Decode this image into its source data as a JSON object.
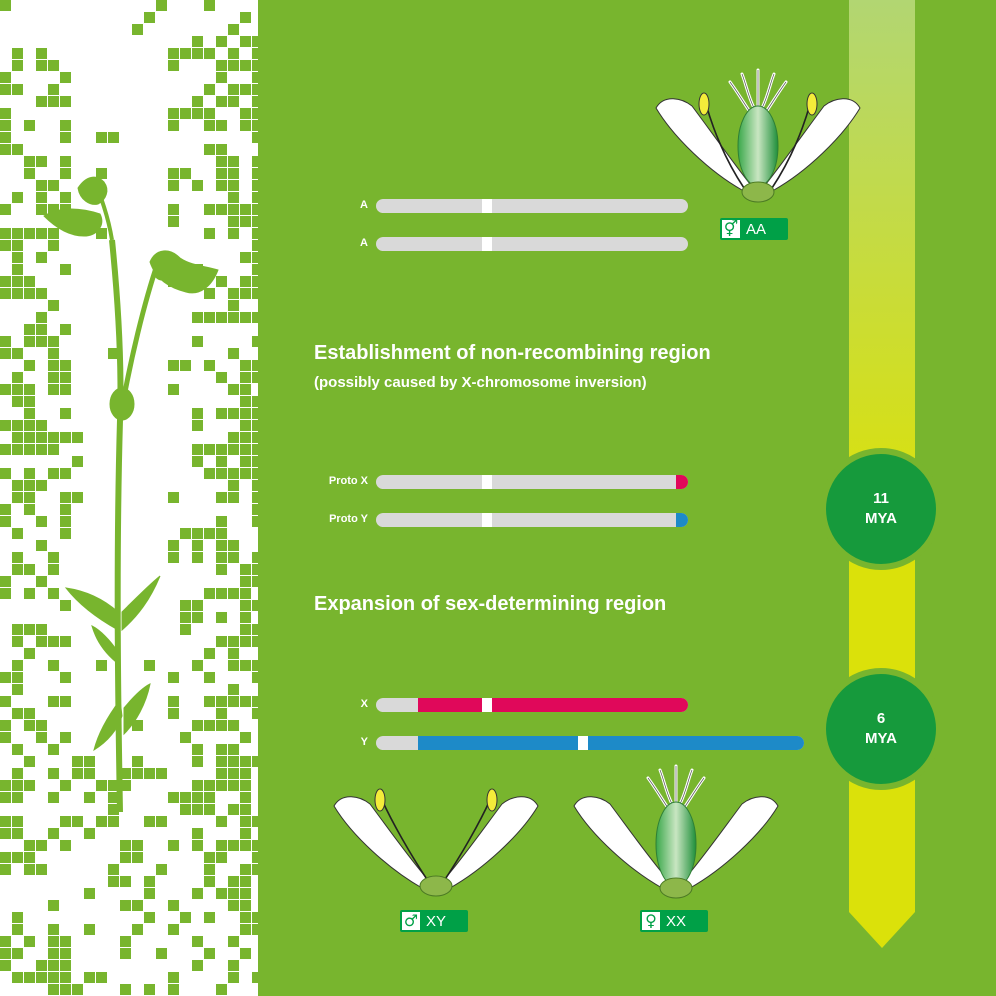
{
  "colors": {
    "panel_green": "#78b52e",
    "badge_green": "#00a047",
    "circle_green": "#169a3c",
    "x_region": "#e0085a",
    "y_region": "#1d8ac8",
    "chromosome_grey": "#d9d9d9",
    "arrow_top": "#b2d672",
    "arrow_bottom": "#dbe10a"
  },
  "headings": {
    "establishment_title": "Establishment of non-recombining region",
    "establishment_subtitle": "(possibly caused by X-chromosome inversion)",
    "expansion_title": "Expansion of sex-determining region"
  },
  "chromosomes": {
    "ancestral": [
      {
        "label": "A"
      },
      {
        "label": "A"
      }
    ],
    "proto": [
      {
        "label": "Proto X"
      },
      {
        "label": "Proto Y"
      }
    ],
    "modern": [
      {
        "label": "X"
      },
      {
        "label": "Y"
      }
    ]
  },
  "timeline": {
    "markers": [
      {
        "line1": "11",
        "line2": "MYA"
      },
      {
        "line1": "6",
        "line2": "MYA"
      }
    ]
  },
  "flowers": {
    "hermaphrodite": {
      "symbol": "⚥",
      "genotype": "AA",
      "icon": "hermaphrodite-flower-icon"
    },
    "male": {
      "symbol": "♂",
      "genotype": "XY",
      "icon": "male-flower-icon"
    },
    "female": {
      "symbol": "♀",
      "genotype": "XX",
      "icon": "female-flower-icon"
    }
  }
}
